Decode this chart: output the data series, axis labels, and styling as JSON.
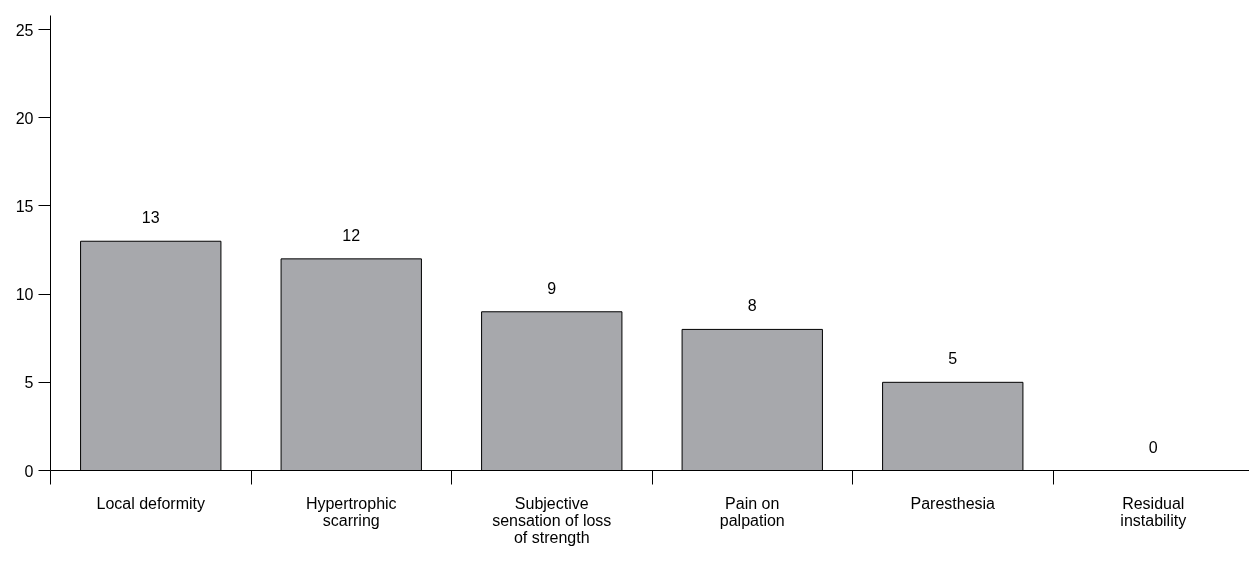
{
  "chart_data": {
    "type": "bar",
    "categories": [
      "Local deformity",
      "Hypertrophic\nscarring",
      "Subjective\nsensation of loss\nof strength",
      "Pain on\npalpation",
      "Paresthesia",
      "Residual\ninstability"
    ],
    "values": [
      13,
      12,
      9,
      8,
      5,
      0
    ],
    "color": "#a7a8ac",
    "data_labels": true,
    "ylim": [
      0,
      25.8
    ],
    "yticks": [
      0,
      5,
      10,
      15,
      20,
      25
    ],
    "grid": false
  }
}
